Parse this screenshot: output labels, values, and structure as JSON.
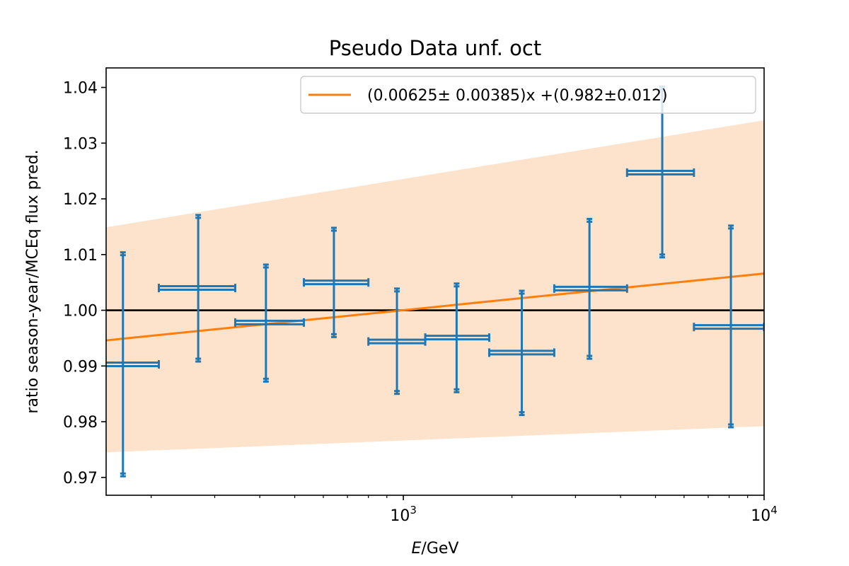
{
  "chart_data": {
    "type": "scatter",
    "title": "Pseudo Data unf. oct",
    "xlabel_italic": "E",
    "xlabel_rest": "/GeV",
    "ylabel": "ratio season-year/MCEq flux pred.",
    "xscale": "log",
    "xlim": [
      150,
      10000
    ],
    "ylim": [
      0.9668,
      1.0435
    ],
    "x_tick_labels": [
      {
        "value": 1000,
        "base": "10",
        "exp": "3"
      },
      {
        "value": 10000,
        "base": "10",
        "exp": "4"
      }
    ],
    "y_ticks": [
      0.97,
      0.98,
      0.99,
      1.0,
      1.01,
      1.02,
      1.03,
      1.04
    ],
    "y_tick_labels": [
      "0.97",
      "0.98",
      "0.99",
      "1.00",
      "1.01",
      "1.02",
      "1.03",
      "1.04"
    ],
    "grid": false,
    "legend_position": "upper-right",
    "reference_line": {
      "y": 1.0,
      "color": "#000000"
    },
    "fit": {
      "label": "(0.00625± 0.00385)x +(0.982±0.012)",
      "color": "#ff7f0e",
      "line": [
        [
          150,
          0.9946
        ],
        [
          10000,
          1.0066
        ]
      ],
      "band_upper": [
        [
          150,
          1.0149
        ],
        [
          10000,
          1.0341
        ]
      ],
      "band_lower": [
        [
          150,
          0.9745
        ],
        [
          10000,
          0.9792
        ]
      ],
      "band_color": "#fde3cc"
    },
    "series": [
      {
        "color": "#1f77b4",
        "points": [
          {
            "x": 167,
            "y": 0.9903,
            "y_lo": 0.9702,
            "y_hi": 1.0104,
            "x_lo": 127,
            "x_hi": 210
          },
          {
            "x": 270,
            "y": 1.004,
            "y_lo": 0.9908,
            "y_hi": 1.0171,
            "x_lo": 210,
            "x_hi": 342
          },
          {
            "x": 416,
            "y": 0.9978,
            "y_lo": 0.9872,
            "y_hi": 1.0082,
            "x_lo": 342,
            "x_hi": 530
          },
          {
            "x": 642,
            "y": 1.005,
            "y_lo": 0.9952,
            "y_hi": 1.0148,
            "x_lo": 530,
            "x_hi": 800
          },
          {
            "x": 960,
            "y": 0.9944,
            "y_lo": 0.985,
            "y_hi": 1.0039,
            "x_lo": 800,
            "x_hi": 1150
          },
          {
            "x": 1405,
            "y": 0.9951,
            "y_lo": 0.9853,
            "y_hi": 1.0048,
            "x_lo": 1150,
            "x_hi": 1730
          },
          {
            "x": 2130,
            "y": 0.9924,
            "y_lo": 0.9812,
            "y_hi": 1.0035,
            "x_lo": 1730,
            "x_hi": 2620
          },
          {
            "x": 3280,
            "y": 1.0039,
            "y_lo": 0.9913,
            "y_hi": 1.0164,
            "x_lo": 2620,
            "x_hi": 4170
          },
          {
            "x": 5220,
            "y": 1.0247,
            "y_lo": 1.0095,
            "y_hi": 1.0401,
            "x_lo": 4170,
            "x_hi": 6390
          },
          {
            "x": 8090,
            "y": 0.997,
            "y_lo": 0.979,
            "y_hi": 1.0152,
            "x_lo": 6390,
            "x_hi": 10000
          }
        ]
      }
    ]
  }
}
